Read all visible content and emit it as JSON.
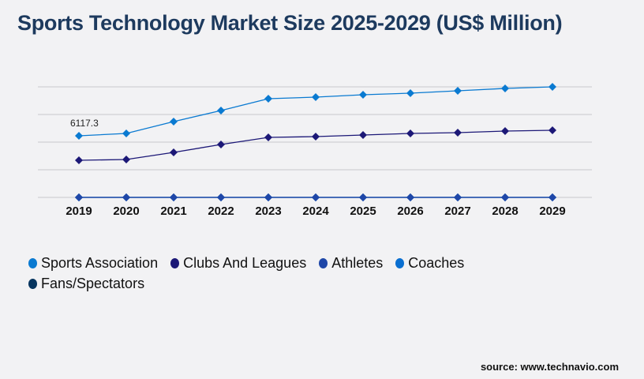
{
  "title": "Sports Technology Market Size 2025-2029 (US$ Million)",
  "source": "source: www.technavio.com",
  "chart_data": {
    "type": "line",
    "title": "Sports Technology Market Size 2025-2029 (US$ Million)",
    "xlabel": "",
    "ylabel": "",
    "x": [
      "2019",
      "2020",
      "2021",
      "2022",
      "2023",
      "2024",
      "2025",
      "2026",
      "2027",
      "2028",
      "2029"
    ],
    "ylim": [
      0,
      10980
    ],
    "grid": true,
    "legend_position": "bottom",
    "annotations": [
      {
        "series": "Sports Association",
        "x": "2019",
        "text": "6117.3"
      }
    ],
    "series": [
      {
        "name": "Sports Association",
        "color": "#0a7ad1",
        "values": [
          6117.3,
          6353,
          7529,
          8627,
          9804,
          9961,
          10196,
          10353,
          10588,
          10823,
          10980
        ]
      },
      {
        "name": "Clubs And Leagues",
        "color": "#1c1877",
        "values": [
          3686,
          3765,
          4471,
          5255,
          5961,
          6039,
          6196,
          6353,
          6431,
          6588,
          6667
        ]
      },
      {
        "name": "Athletes",
        "color": "#1f47a8",
        "values": [
          0,
          0,
          0,
          0,
          0,
          0,
          0,
          0,
          0,
          0,
          0
        ]
      },
      {
        "name": "Coaches",
        "color": "#0a6fd1",
        "values": [
          0,
          0,
          0,
          0,
          0,
          0,
          0,
          0,
          0,
          0,
          0
        ]
      },
      {
        "name": "Fans/Spectators",
        "color": "#06355f",
        "values": [
          0,
          0,
          0,
          0,
          0,
          0,
          0,
          0,
          0,
          0,
          0
        ]
      }
    ]
  }
}
